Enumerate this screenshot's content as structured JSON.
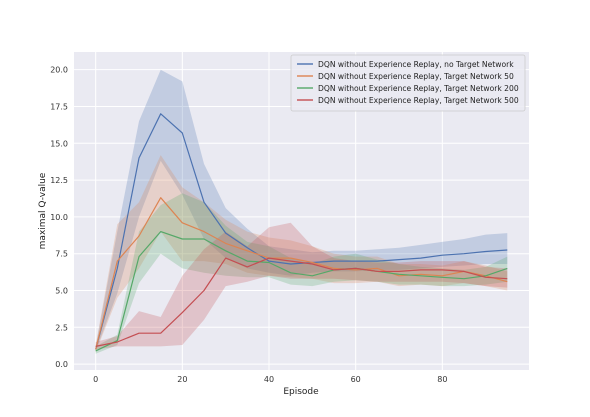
{
  "chart_data": {
    "type": "line",
    "title": "",
    "xlabel": "Episode",
    "ylabel": "maximal Q-value",
    "xlim": [
      -5,
      100
    ],
    "ylim": [
      -0.4,
      21.2
    ],
    "xticks": [
      0,
      20,
      40,
      60,
      80
    ],
    "yticks": [
      0.0,
      2.5,
      5.0,
      7.5,
      10.0,
      12.5,
      15.0,
      17.5,
      20.0
    ],
    "ytick_labels": [
      "0.0",
      "2.5",
      "5.0",
      "7.5",
      "10.0",
      "12.5",
      "15.0",
      "17.5",
      "20.0"
    ],
    "grid": true,
    "legend_position": "top-right",
    "x": [
      0,
      5,
      10,
      15,
      20,
      25,
      30,
      35,
      40,
      45,
      50,
      55,
      60,
      65,
      70,
      75,
      80,
      85,
      90,
      95
    ],
    "series": [
      {
        "name": "DQN without Experience Replay, no Target Network",
        "color": "#4c72b0",
        "values": [
          1.0,
          6.5,
          14.0,
          17.0,
          15.7,
          11.0,
          8.9,
          7.9,
          7.0,
          6.8,
          6.9,
          7.0,
          7.0,
          7.0,
          7.1,
          7.2,
          7.4,
          7.5,
          7.65,
          7.75
        ],
        "lower": [
          0.9,
          4.8,
          10.0,
          13.8,
          11.5,
          8.5,
          7.2,
          6.5,
          6.2,
          6.0,
          6.2,
          6.3,
          6.3,
          6.4,
          6.4,
          6.5,
          6.6,
          6.7,
          6.8,
          6.8
        ],
        "upper": [
          1.2,
          9.0,
          16.5,
          20.0,
          19.2,
          13.6,
          10.6,
          9.2,
          8.0,
          7.8,
          7.6,
          7.7,
          7.7,
          7.8,
          7.9,
          8.1,
          8.3,
          8.5,
          8.8,
          8.9
        ]
      },
      {
        "name": "DQN without Experience Replay, Target Network 50",
        "color": "#dd8452",
        "values": [
          1.0,
          7.0,
          8.7,
          11.3,
          9.6,
          9.0,
          8.2,
          7.7,
          7.2,
          7.2,
          6.9,
          6.5,
          6.4,
          6.5,
          6.0,
          6.1,
          6.0,
          6.3,
          6.0,
          5.6
        ],
        "lower": [
          0.8,
          4.5,
          6.5,
          9.0,
          7.0,
          7.0,
          6.8,
          6.2,
          6.0,
          5.9,
          5.8,
          5.5,
          5.5,
          5.6,
          5.3,
          5.4,
          5.3,
          5.5,
          5.3,
          5.0
        ],
        "upper": [
          1.3,
          9.5,
          11.0,
          14.2,
          12.0,
          11.0,
          9.8,
          9.0,
          8.6,
          8.4,
          8.0,
          7.5,
          7.3,
          7.3,
          6.8,
          6.8,
          6.7,
          7.0,
          6.7,
          6.3
        ]
      },
      {
        "name": "DQN without Experience Replay, Target Network 200",
        "color": "#55a868",
        "values": [
          0.9,
          1.6,
          7.3,
          9.0,
          8.5,
          8.5,
          7.7,
          7.0,
          6.9,
          6.2,
          6.0,
          6.4,
          6.5,
          6.3,
          6.1,
          6.0,
          5.9,
          5.8,
          6.0,
          6.5
        ],
        "lower": [
          0.7,
          1.3,
          5.5,
          7.5,
          6.5,
          6.2,
          6.0,
          5.9,
          5.9,
          5.4,
          5.3,
          5.6,
          5.7,
          5.6,
          5.4,
          5.4,
          5.3,
          5.3,
          5.4,
          5.6
        ],
        "upper": [
          1.2,
          2.0,
          9.0,
          10.8,
          11.6,
          11.0,
          9.4,
          8.3,
          8.0,
          7.2,
          6.8,
          7.3,
          7.5,
          7.1,
          6.8,
          6.6,
          6.5,
          6.4,
          6.6,
          7.3
        ]
      },
      {
        "name": "DQN without Experience Replay, Target Network 500",
        "color": "#c44e52",
        "values": [
          1.2,
          1.5,
          2.1,
          2.1,
          3.5,
          5.0,
          7.2,
          6.6,
          7.2,
          7.0,
          6.8,
          6.4,
          6.5,
          6.3,
          6.3,
          6.4,
          6.4,
          6.3,
          5.9,
          5.8
        ],
        "lower": [
          1.0,
          1.2,
          1.2,
          1.2,
          1.3,
          3.0,
          5.3,
          5.6,
          6.0,
          5.8,
          5.8,
          5.8,
          5.7,
          5.6,
          5.6,
          5.6,
          5.6,
          5.5,
          5.3,
          5.2
        ],
        "upper": [
          1.5,
          1.9,
          3.6,
          3.2,
          6.0,
          7.8,
          9.0,
          8.0,
          9.3,
          9.6,
          8.0,
          7.2,
          7.0,
          6.9,
          6.9,
          7.0,
          7.0,
          7.0,
          6.6,
          6.5
        ]
      }
    ]
  },
  "colors": {
    "plot_background": "#eaeaf2",
    "grid": "#ffffff",
    "legend_background": "#eaeaf2",
    "legend_border": "#cccccc"
  }
}
